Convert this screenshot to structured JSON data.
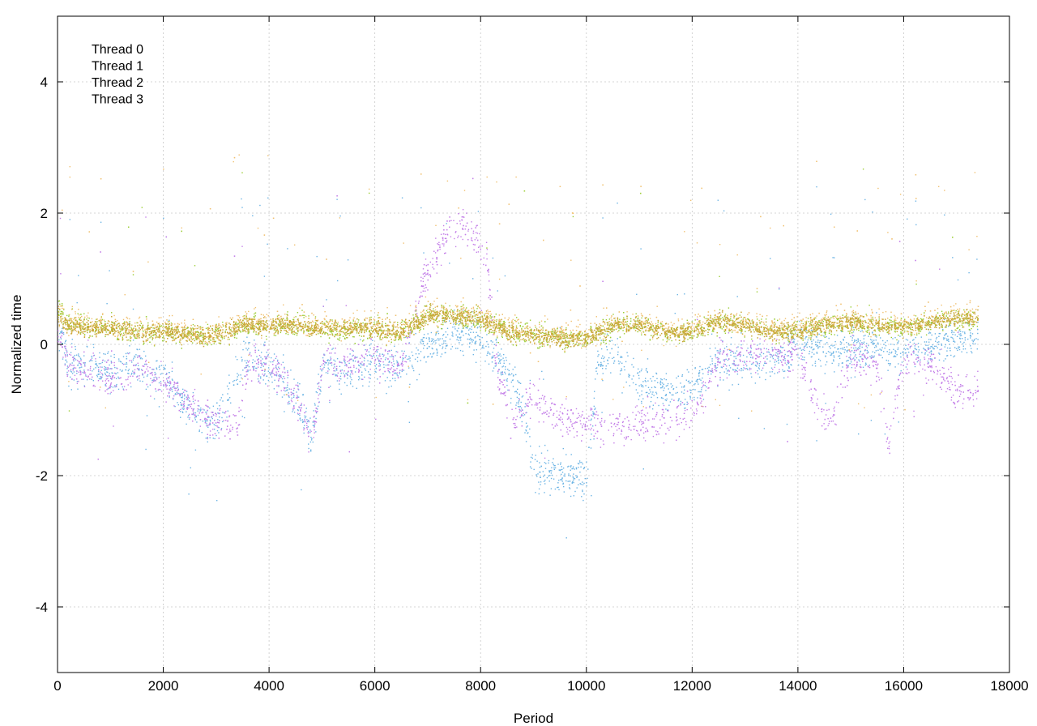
{
  "chart_data": {
    "type": "scatter",
    "title": "",
    "xlabel": "Period",
    "ylabel": "Normalized time",
    "xlim": [
      0,
      18000
    ],
    "ylim": [
      -5,
      5
    ],
    "xticks": [
      0,
      2000,
      4000,
      6000,
      8000,
      10000,
      12000,
      14000,
      16000,
      18000
    ],
    "yticks": [
      -4,
      -2,
      0,
      2,
      4
    ],
    "grid": true,
    "legend_position": "top-left",
    "legend_entries": [
      "Thread 0",
      "Thread 1",
      "Thread 2",
      "Thread 3"
    ],
    "series": [
      {
        "name": "Thread 0",
        "color": "#9ACD32",
        "marker": "dot",
        "points": [
          [
            0,
            0.6
          ],
          [
            200,
            0.35
          ],
          [
            500,
            0.3
          ],
          [
            1000,
            0.25
          ],
          [
            1500,
            0.2
          ],
          [
            2000,
            0.2
          ],
          [
            2500,
            0.15
          ],
          [
            3000,
            0.15
          ],
          [
            3500,
            0.3
          ],
          [
            4000,
            0.3
          ],
          [
            4500,
            0.3
          ],
          [
            5000,
            0.25
          ],
          [
            5500,
            0.2
          ],
          [
            6000,
            0.25
          ],
          [
            6500,
            0.2
          ],
          [
            7000,
            0.45
          ],
          [
            7500,
            0.45
          ],
          [
            8000,
            0.4
          ],
          [
            8500,
            0.2
          ],
          [
            9000,
            0.15
          ],
          [
            9500,
            0.1
          ],
          [
            10000,
            0.1
          ],
          [
            10500,
            0.3
          ],
          [
            11000,
            0.3
          ],
          [
            11500,
            0.2
          ],
          [
            12000,
            0.2
          ],
          [
            12500,
            0.35
          ],
          [
            13000,
            0.3
          ],
          [
            13500,
            0.2
          ],
          [
            14000,
            0.2
          ],
          [
            14500,
            0.3
          ],
          [
            15000,
            0.35
          ],
          [
            15500,
            0.3
          ],
          [
            16000,
            0.25
          ],
          [
            16500,
            0.35
          ],
          [
            17000,
            0.4
          ],
          [
            17400,
            0.4
          ]
        ]
      },
      {
        "name": "Thread 1",
        "color": "#6CB4E4",
        "marker": "dot",
        "points": [
          [
            0,
            0.3
          ],
          [
            200,
            -0.3
          ],
          [
            500,
            -0.3
          ],
          [
            1000,
            -0.4
          ],
          [
            1500,
            -0.3
          ],
          [
            2000,
            -0.5
          ],
          [
            2500,
            -1.0
          ],
          [
            3000,
            -1.2
          ],
          [
            3500,
            -0.2
          ],
          [
            4000,
            -0.3
          ],
          [
            4500,
            -0.8
          ],
          [
            4800,
            -1.4
          ],
          [
            5000,
            -0.3
          ],
          [
            5500,
            -0.4
          ],
          [
            6000,
            -0.3
          ],
          [
            6500,
            -0.3
          ],
          [
            7000,
            0.0
          ],
          [
            7500,
            0.2
          ],
          [
            8000,
            0.1
          ],
          [
            8500,
            -0.4
          ],
          [
            8800,
            -1.0
          ],
          [
            9000,
            -1.9
          ],
          [
            9500,
            -2.0
          ],
          [
            10000,
            -2.0
          ],
          [
            10200,
            -0.3
          ],
          [
            10500,
            -0.1
          ],
          [
            11000,
            -0.6
          ],
          [
            11500,
            -0.7
          ],
          [
            12000,
            -0.7
          ],
          [
            12500,
            -0.2
          ],
          [
            13000,
            -0.3
          ],
          [
            13500,
            -0.2
          ],
          [
            14000,
            0.0
          ],
          [
            14500,
            -0.1
          ],
          [
            15000,
            -0.1
          ],
          [
            15500,
            0.0
          ],
          [
            16000,
            -0.1
          ],
          [
            16500,
            0.0
          ],
          [
            17000,
            0.1
          ],
          [
            17400,
            0.1
          ]
        ]
      },
      {
        "name": "Thread 2",
        "color": "#C47FE8",
        "marker": "dot",
        "points": [
          [
            0,
            0.2
          ],
          [
            200,
            -0.3
          ],
          [
            500,
            -0.4
          ],
          [
            1000,
            -0.5
          ],
          [
            1500,
            -0.4
          ],
          [
            2000,
            -0.5
          ],
          [
            2300,
            -0.8
          ],
          [
            2600,
            -1.0
          ],
          [
            3000,
            -1.2
          ],
          [
            3400,
            -1.2
          ],
          [
            3600,
            -0.3
          ],
          [
            4000,
            -0.3
          ],
          [
            4500,
            -0.8
          ],
          [
            4800,
            -1.5
          ],
          [
            5000,
            -0.3
          ],
          [
            5500,
            -0.3
          ],
          [
            6000,
            -0.2
          ],
          [
            6500,
            -0.3
          ],
          [
            6900,
            1.0
          ],
          [
            7300,
            1.6
          ],
          [
            7600,
            1.9
          ],
          [
            7900,
            1.6
          ],
          [
            8100,
            1.4
          ],
          [
            8300,
            -0.4
          ],
          [
            8600,
            -1.2
          ],
          [
            9000,
            -0.8
          ],
          [
            9500,
            -1.1
          ],
          [
            10000,
            -1.2
          ],
          [
            10500,
            -1.2
          ],
          [
            11000,
            -1.2
          ],
          [
            11500,
            -1.1
          ],
          [
            12000,
            -1.1
          ],
          [
            12500,
            -0.2
          ],
          [
            13000,
            -0.2
          ],
          [
            13500,
            -0.1
          ],
          [
            14000,
            -0.2
          ],
          [
            14300,
            -0.8
          ],
          [
            14600,
            -1.2
          ],
          [
            15000,
            -0.2
          ],
          [
            15500,
            -0.3
          ],
          [
            15700,
            -1.5
          ],
          [
            16000,
            -0.2
          ],
          [
            16500,
            -0.3
          ],
          [
            17000,
            -0.7
          ],
          [
            17400,
            -0.7
          ]
        ]
      },
      {
        "name": "Thread 3",
        "color": "#F0C070",
        "marker": "dot",
        "points": [
          [
            0,
            0.5
          ],
          [
            200,
            0.35
          ],
          [
            500,
            0.3
          ],
          [
            1000,
            0.3
          ],
          [
            1500,
            0.25
          ],
          [
            2000,
            0.25
          ],
          [
            2500,
            0.2
          ],
          [
            3000,
            0.2
          ],
          [
            3500,
            0.35
          ],
          [
            4000,
            0.35
          ],
          [
            4500,
            0.35
          ],
          [
            5000,
            0.3
          ],
          [
            5500,
            0.3
          ],
          [
            6000,
            0.3
          ],
          [
            6500,
            0.25
          ],
          [
            7000,
            0.5
          ],
          [
            7500,
            0.5
          ],
          [
            8000,
            0.45
          ],
          [
            8500,
            0.25
          ],
          [
            9000,
            0.2
          ],
          [
            9500,
            0.15
          ],
          [
            10000,
            0.15
          ],
          [
            10500,
            0.35
          ],
          [
            11000,
            0.35
          ],
          [
            11500,
            0.25
          ],
          [
            12000,
            0.25
          ],
          [
            12500,
            0.4
          ],
          [
            13000,
            0.35
          ],
          [
            13500,
            0.25
          ],
          [
            14000,
            0.25
          ],
          [
            14500,
            0.35
          ],
          [
            15000,
            0.4
          ],
          [
            15500,
            0.35
          ],
          [
            16000,
            0.3
          ],
          [
            16500,
            0.4
          ],
          [
            17000,
            0.45
          ],
          [
            17400,
            0.45
          ]
        ]
      }
    ],
    "overlay_color": "#C8A838"
  }
}
